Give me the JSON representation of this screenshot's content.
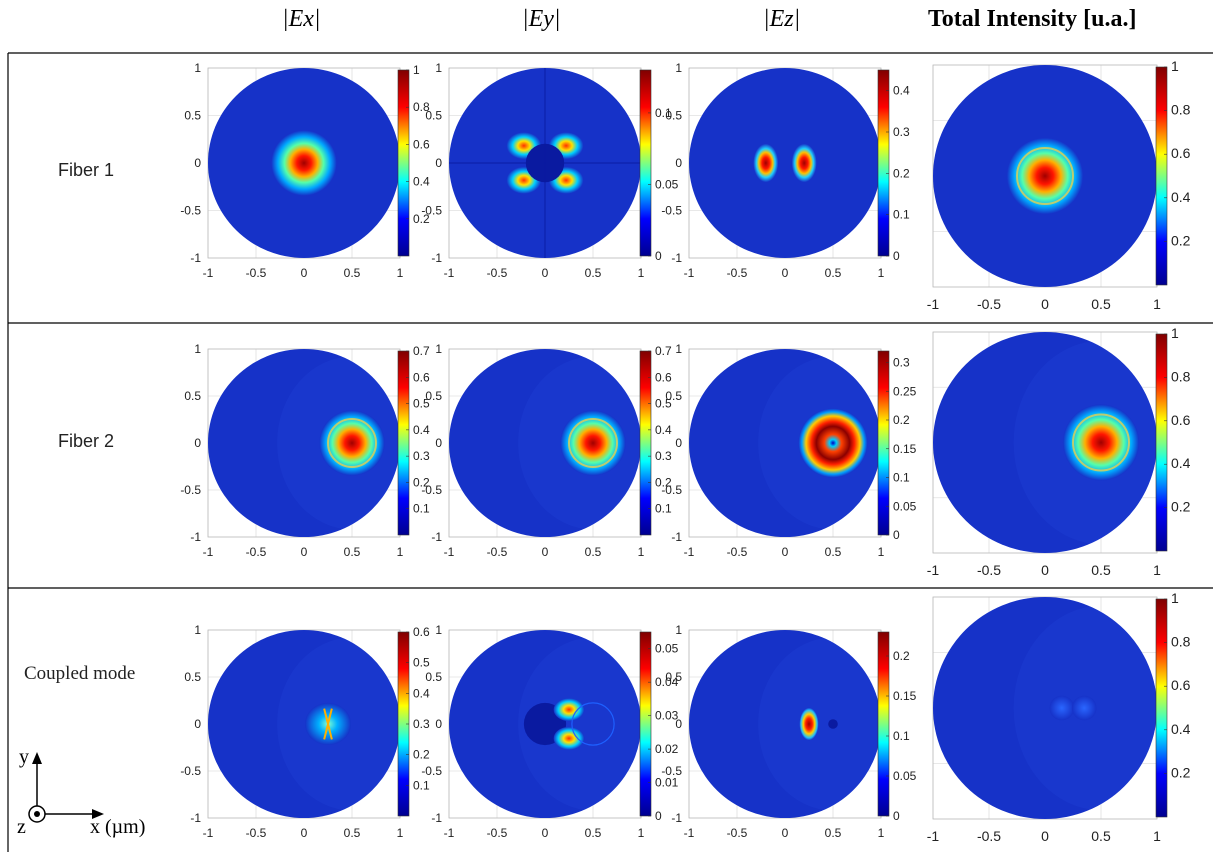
{
  "column_headers": [
    "|Ex|",
    "|Ey|",
    "|Ez|",
    "Total Intensity [u.a.]"
  ],
  "row_labels": [
    "Fiber 1",
    "Fiber 2",
    "Coupled mode"
  ],
  "axes_legend": {
    "y": "y",
    "z": "z",
    "x": "x (µm)"
  },
  "colormap": [
    "#00008f",
    "#0000ff",
    "#00ffff",
    "#ffff00",
    "#ff0000",
    "#800000"
  ],
  "chart_data": {
    "type": "heatmap",
    "xlim": [
      -1,
      1
    ],
    "ylim": [
      -1,
      1
    ],
    "x_ticks": [
      "-1",
      "-0.5",
      "0",
      "0.5",
      "1"
    ],
    "y_ticks": [
      "1",
      "0.5",
      "0",
      "-0.5",
      "-1"
    ],
    "grid": true,
    "plots": [
      {
        "row": "Fiber 1",
        "col": "|Ex|",
        "cmax": 1,
        "cticks": [
          "1",
          "0.8",
          "0.6",
          "0.4",
          "0.2"
        ],
        "pattern": "spot",
        "center": [
          0,
          0
        ]
      },
      {
        "row": "Fiber 1",
        "col": "|Ey|",
        "cmax": 0.13,
        "cticks": [
          "0.1",
          "0.05",
          "0"
        ],
        "pattern": "clover",
        "center": [
          0,
          0
        ]
      },
      {
        "row": "Fiber 1",
        "col": "|Ez|",
        "cmax": 0.45,
        "cticks": [
          "0.4",
          "0.3",
          "0.2",
          "0.1",
          "0"
        ],
        "pattern": "lobes",
        "center": [
          0,
          0
        ]
      },
      {
        "row": "Fiber 1",
        "col": "Total Intensity [u.a.]",
        "cmax": 1,
        "cticks": [
          "1",
          "0.8",
          "0.6",
          "0.4",
          "0.2"
        ],
        "pattern": "spot-ring",
        "center": [
          0,
          0
        ]
      },
      {
        "row": "Fiber 2",
        "col": "|Ex|",
        "cmax": 0.7,
        "cticks": [
          "0.7",
          "0.6",
          "0.5",
          "0.4",
          "0.3",
          "0.2",
          "0.1"
        ],
        "pattern": "spot-ring",
        "center": [
          0.5,
          0
        ]
      },
      {
        "row": "Fiber 2",
        "col": "|Ey|",
        "cmax": 0.7,
        "cticks": [
          "0.7",
          "0.6",
          "0.5",
          "0.4",
          "0.3",
          "0.2",
          "0.1"
        ],
        "pattern": "spot-ring",
        "center": [
          0.5,
          0
        ]
      },
      {
        "row": "Fiber 2",
        "col": "|Ez|",
        "cmax": 0.32,
        "cticks": [
          "0.3",
          "0.25",
          "0.2",
          "0.15",
          "0.1",
          "0.05",
          "0"
        ],
        "pattern": "donut",
        "center": [
          0.5,
          0
        ]
      },
      {
        "row": "Fiber 2",
        "col": "Total Intensity [u.a.]",
        "cmax": 1,
        "cticks": [
          "1",
          "0.8",
          "0.6",
          "0.4",
          "0.2"
        ],
        "pattern": "spot-ring",
        "center": [
          0.5,
          0
        ]
      },
      {
        "row": "Coupled mode",
        "col": "|Ex|",
        "cmax": 0.6,
        "cticks": [
          "0.6",
          "0.5",
          "0.4",
          "0.3",
          "0.2",
          "0.1"
        ],
        "pattern": "coupled-x",
        "center": [
          0.25,
          0
        ]
      },
      {
        "row": "Coupled mode",
        "col": "|Ey|",
        "cmax": 0.055,
        "cticks": [
          "0.05",
          "0.04",
          "0.03",
          "0.02",
          "0.01",
          "0"
        ],
        "pattern": "coupled-y",
        "center": [
          0.25,
          0
        ]
      },
      {
        "row": "Coupled mode",
        "col": "|Ez|",
        "cmax": 0.23,
        "cticks": [
          "0.2",
          "0.15",
          "0.1",
          "0.05",
          "0"
        ],
        "pattern": "coupled-z",
        "center": [
          0.25,
          0
        ]
      },
      {
        "row": "Coupled mode",
        "col": "Total Intensity [u.a.]",
        "cmax": 1,
        "cticks": [
          "1",
          "0.8",
          "0.6",
          "0.4",
          "0.2"
        ],
        "pattern": "coupled-total",
        "center": [
          0.25,
          0
        ]
      }
    ]
  }
}
